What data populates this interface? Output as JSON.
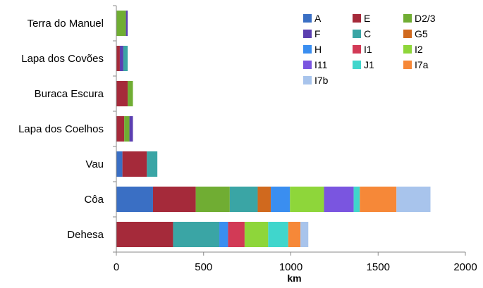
{
  "chart_data": {
    "type": "bar",
    "orientation": "horizontal",
    "stacked": true,
    "xlabel": "km",
    "xlim": [
      0,
      2000
    ],
    "xticks": [
      "0",
      "500",
      "1000",
      "1500",
      "2000"
    ],
    "grid": false,
    "legend_position": "top-right",
    "categories": [
      "Terra do Manuel",
      "Lapa dos Covões",
      "Buraca Escura",
      "Lapa dos Coelhos",
      "Vau",
      "Côa",
      "Dehesa"
    ],
    "series": [
      {
        "name": "A",
        "color": "#3a6fc4",
        "values": [
          0,
          0,
          0,
          0,
          35,
          210,
          0
        ]
      },
      {
        "name": "E",
        "color": "#a52a3a",
        "values": [
          0,
          20,
          65,
          45,
          140,
          245,
          325
        ]
      },
      {
        "name": "D2/3",
        "color": "#70ad33",
        "values": [
          55,
          0,
          30,
          30,
          0,
          195,
          0
        ]
      },
      {
        "name": "F",
        "color": "#5b3fb0",
        "values": [
          10,
          20,
          0,
          20,
          0,
          0,
          0
        ]
      },
      {
        "name": "C",
        "color": "#3aa5a5",
        "values": [
          0,
          25,
          0,
          0,
          60,
          160,
          265
        ]
      },
      {
        "name": "G5",
        "color": "#d0691e",
        "values": [
          0,
          0,
          0,
          0,
          0,
          75,
          0
        ]
      },
      {
        "name": "H",
        "color": "#3a8ef0",
        "values": [
          0,
          0,
          0,
          0,
          0,
          110,
          50
        ]
      },
      {
        "name": "I1",
        "color": "#d23a56",
        "values": [
          0,
          0,
          0,
          0,
          0,
          0,
          95
        ]
      },
      {
        "name": "I2",
        "color": "#8ed63a",
        "values": [
          0,
          0,
          0,
          0,
          0,
          195,
          135
        ]
      },
      {
        "name": "I11",
        "color": "#7a55e0",
        "values": [
          0,
          0,
          0,
          0,
          0,
          170,
          0
        ]
      },
      {
        "name": "J1",
        "color": "#40d6cc",
        "values": [
          0,
          0,
          0,
          0,
          0,
          35,
          115
        ]
      },
      {
        "name": "I7a",
        "color": "#f68838",
        "values": [
          0,
          0,
          0,
          0,
          0,
          210,
          70
        ]
      },
      {
        "name": "I7b",
        "color": "#a8c4ec",
        "values": [
          0,
          0,
          0,
          0,
          0,
          195,
          45
        ]
      }
    ]
  }
}
